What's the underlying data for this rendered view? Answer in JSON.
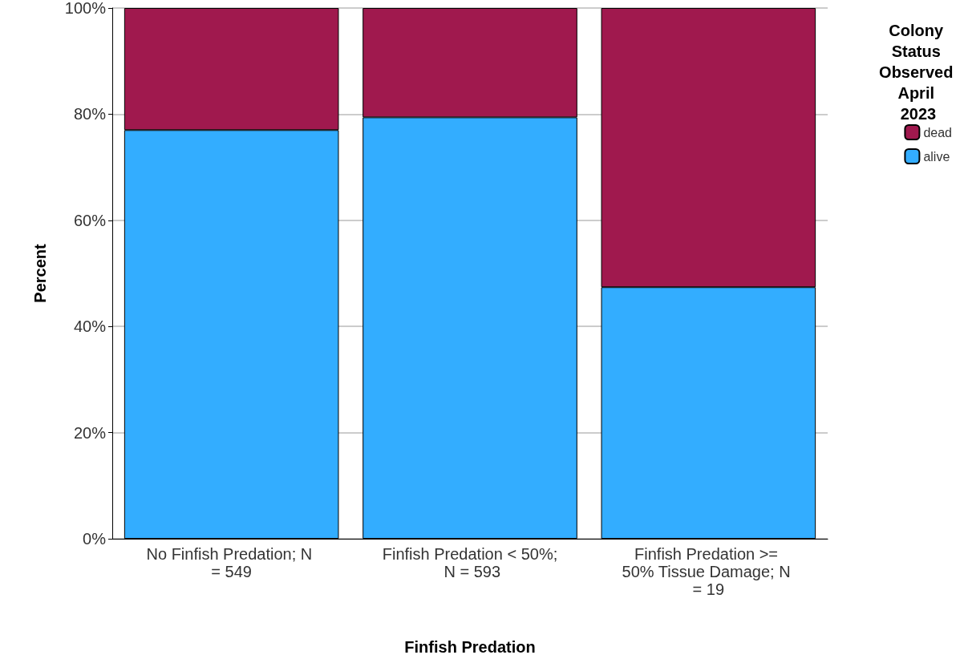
{
  "chart_data": {
    "type": "bar",
    "stacked": true,
    "xlabel": "Finfish Predation",
    "ylabel": "Percent",
    "legend_title": "Colony Status Observed April 2023",
    "categories": [
      "No Finfish Predation; N = 549",
      "Finfish Predation < 50%; N = 593",
      "Finfish Predation >= 50% Tissue Damage; N = 19"
    ],
    "series": [
      {
        "name": "alive",
        "color": "#33adff",
        "values": [
          77.0,
          79.4,
          47.4
        ]
      },
      {
        "name": "dead",
        "color": "#a0194e",
        "values": [
          23.0,
          20.6,
          52.6
        ]
      }
    ],
    "ylim": [
      0,
      100
    ],
    "yticks": [
      {
        "value": 0,
        "label": "0%"
      },
      {
        "value": 20,
        "label": "20%"
      },
      {
        "value": 40,
        "label": "40%"
      },
      {
        "value": 60,
        "label": "60%"
      },
      {
        "value": 80,
        "label": "80%"
      },
      {
        "value": 100,
        "label": "100%"
      }
    ],
    "grid": "y",
    "legend": "top right"
  }
}
